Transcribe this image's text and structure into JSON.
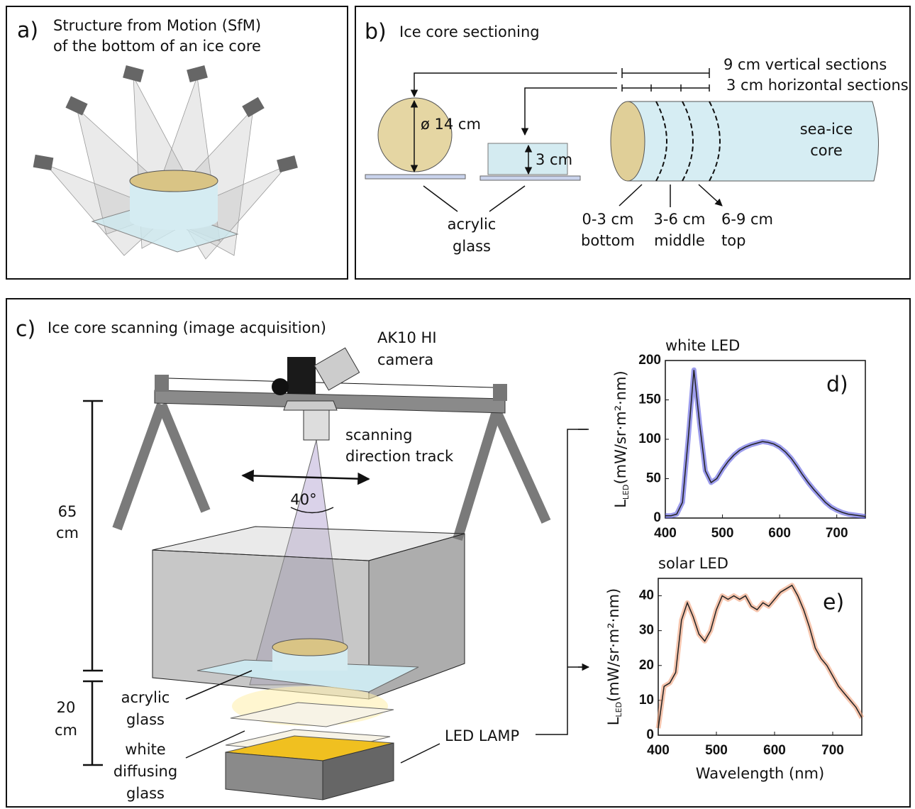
{
  "panel_a": {
    "label": "a)",
    "title_lines": [
      "Structure from Motion (SfM)",
      "of the bottom of an ice core"
    ]
  },
  "panel_b": {
    "label": "b)",
    "title": "Ice core sectioning",
    "vertical": "9 cm vertical sections",
    "horizontal": "3 cm horizontal sections",
    "diameter": "ø 14  cm",
    "height": "3  cm",
    "core_lines": [
      "sea-ice",
      "core"
    ],
    "glass_lines": [
      "acrylic",
      "glass"
    ],
    "sections": [
      [
        "0-3 cm",
        "bottom"
      ],
      [
        "3-6 cm",
        "middle"
      ],
      [
        "6-9 cm",
        "top"
      ]
    ]
  },
  "panel_c": {
    "label": "c)",
    "title": "Ice core scanning (image acquisition)",
    "camera_lines": [
      "AK10 HI",
      "camera"
    ],
    "track_lines": [
      "scanning",
      "direction track"
    ],
    "angle": "40°",
    "upper_dim": [
      "65",
      "cm"
    ],
    "lower_dim": [
      "20",
      "cm"
    ],
    "glass_lines": [
      "acrylic",
      "glass"
    ],
    "diffuser_lines": [
      "white",
      "diffusing",
      "glass"
    ],
    "lamp": "LED LAMP"
  },
  "chart_data": [
    {
      "type": "line",
      "title": "white LED",
      "panel_label": "d)",
      "y_label": "L",
      "y_label_sub": "LED",
      "y_label_unit": "(mW/sr·m²·nm)",
      "x": [
        400,
        410,
        420,
        430,
        440,
        450,
        460,
        470,
        480,
        490,
        500,
        510,
        520,
        530,
        540,
        550,
        560,
        570,
        580,
        590,
        600,
        610,
        620,
        630,
        640,
        650,
        660,
        670,
        680,
        690,
        700,
        710,
        720,
        730,
        740,
        750
      ],
      "values": [
        3,
        3,
        5,
        20,
        100,
        188,
        120,
        60,
        45,
        50,
        62,
        72,
        80,
        86,
        90,
        93,
        95,
        97,
        96,
        94,
        90,
        84,
        76,
        66,
        55,
        45,
        36,
        28,
        20,
        14,
        10,
        7,
        5,
        4,
        3,
        2
      ],
      "color": "#222222",
      "band_color": "#5a5ae0",
      "xlim": [
        400,
        750
      ],
      "xticks": [
        400,
        500,
        600,
        700
      ],
      "ylim": [
        0,
        200
      ],
      "yticks": [
        0,
        50,
        100,
        150,
        200
      ]
    },
    {
      "type": "line",
      "title": "solar LED",
      "panel_label": "e)",
      "y_label": "L",
      "y_label_sub": "LED",
      "y_label_unit": "(mW/sr·m²·nm)",
      "x_label": "Wavelength (nm)",
      "x": [
        400,
        410,
        420,
        430,
        440,
        450,
        460,
        470,
        480,
        490,
        500,
        510,
        520,
        530,
        540,
        550,
        560,
        570,
        580,
        590,
        600,
        610,
        620,
        630,
        640,
        650,
        660,
        670,
        680,
        690,
        700,
        710,
        720,
        730,
        740,
        750
      ],
      "values": [
        2,
        14,
        15,
        18,
        33,
        38,
        34,
        29,
        27,
        30,
        36,
        40,
        39,
        40,
        39,
        40,
        37,
        36,
        38,
        37,
        39,
        41,
        42,
        43,
        40,
        36,
        31,
        25,
        22,
        20,
        17,
        14,
        12,
        10,
        8,
        5
      ],
      "color": "#222222",
      "band_color": "#f0a07a",
      "xlim": [
        400,
        750
      ],
      "xticks": [
        400,
        500,
        600,
        700
      ],
      "ylim": [
        0,
        45
      ],
      "yticks": [
        0,
        10,
        20,
        30,
        40
      ]
    }
  ]
}
